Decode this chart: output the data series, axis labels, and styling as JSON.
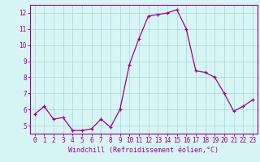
{
  "x": [
    0,
    1,
    2,
    3,
    4,
    5,
    6,
    7,
    8,
    9,
    10,
    11,
    12,
    13,
    14,
    15,
    16,
    17,
    18,
    19,
    20,
    21,
    22,
    23
  ],
  "y": [
    5.7,
    6.2,
    5.4,
    5.5,
    4.7,
    4.7,
    4.8,
    5.4,
    4.9,
    6.0,
    8.8,
    10.4,
    11.8,
    11.9,
    12.0,
    12.2,
    11.0,
    8.4,
    8.3,
    8.0,
    7.0,
    5.9,
    6.2,
    6.6
  ],
  "line_color": "#990099",
  "marker": "+",
  "marker_size": 3,
  "background_color": "#d8f5f5",
  "grid_color": "#aadddd",
  "xlabel": "Windchill (Refroidissement éolien,°C)",
  "xlabel_color": "#990099",
  "tick_color": "#990099",
  "axis_color": "#990099",
  "ylim": [
    4.5,
    12.5
  ],
  "yticks": [
    5,
    6,
    7,
    8,
    9,
    10,
    11,
    12
  ],
  "xlim": [
    -0.5,
    23.5
  ],
  "xticks": [
    0,
    1,
    2,
    3,
    4,
    5,
    6,
    7,
    8,
    9,
    10,
    11,
    12,
    13,
    14,
    15,
    16,
    17,
    18,
    19,
    20,
    21,
    22,
    23
  ]
}
